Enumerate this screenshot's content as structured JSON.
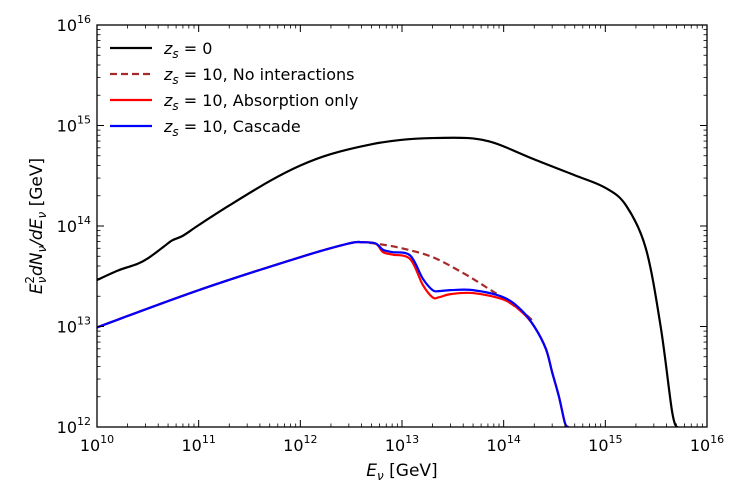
{
  "chart_data": {
    "type": "line",
    "xscale": "log",
    "yscale": "log",
    "xlabel": "E_ν [GeV]",
    "ylabel": "E_ν^2 dN_ν/dE_ν [GeV]",
    "xlabel_parts": {
      "symbol": "E",
      "sub": "ν",
      "unit": " [GeV]"
    },
    "ylabel_parts": {
      "E": "E",
      "sub": "ν",
      "sup": "2",
      "mid": "dN",
      "sub2": "ν",
      "div": "/dE",
      "sub3": "ν",
      "unit": " [GeV]"
    },
    "xlim": [
      10000000000.0,
      1e+16
    ],
    "ylim": [
      1000000000000.0,
      1e+16
    ],
    "x_ticks": [
      {
        "base": "10",
        "exp": "10",
        "value": 10000000000.0
      },
      {
        "base": "10",
        "exp": "11",
        "value": 100000000000.0
      },
      {
        "base": "10",
        "exp": "12",
        "value": 1000000000000.0
      },
      {
        "base": "10",
        "exp": "13",
        "value": 10000000000000.0
      },
      {
        "base": "10",
        "exp": "14",
        "value": 100000000000000.0
      },
      {
        "base": "10",
        "exp": "15",
        "value": 1000000000000000.0
      },
      {
        "base": "10",
        "exp": "16",
        "value": 1e+16
      }
    ],
    "y_ticks": [
      {
        "base": "10",
        "exp": "12",
        "value": 1000000000000.0
      },
      {
        "base": "10",
        "exp": "13",
        "value": 10000000000000.0
      },
      {
        "base": "10",
        "exp": "14",
        "value": 100000000000000.0
      },
      {
        "base": "10",
        "exp": "15",
        "value": 1000000000000000.0
      },
      {
        "base": "10",
        "exp": "16",
        "value": 1e+16
      }
    ],
    "legend_position": "top-left",
    "series": [
      {
        "name": "z_s = 0",
        "legend_main": "z",
        "legend_sub": "s",
        "legend_rest": " = 0",
        "color": "#000000",
        "dash": "solid",
        "x": [
          10000000000.0,
          16000000000.0,
          25000000000.0,
          32000000000.0,
          45000000000.0,
          55000000000.0,
          70000000000.0,
          100000000000.0,
          200000000000.0,
          500000000000.0,
          1000000000000.0,
          2000000000000.0,
          5000000000000.0,
          10000000000000.0,
          20000000000000.0,
          45000000000000.0,
          70000000000000.0,
          100000000000000.0,
          200000000000000.0,
          500000000000000.0,
          1000000000000000.0,
          1600000000000000.0,
          2500000000000000.0,
          3500000000000000.0,
          4500000000000000.0,
          5000000000000000.0,
          5200000000000000.0
        ],
        "y": [
          29000000000000.0,
          36000000000000.0,
          42000000000000.0,
          48000000000000.0,
          62000000000000.0,
          72000000000000.0,
          80000000000000.0,
          102000000000000.0,
          160000000000000.0,
          280000000000000.0,
          400000000000000.0,
          520000000000000.0,
          650000000000000.0,
          720000000000000.0,
          750000000000000.0,
          750000000000000.0,
          700000000000000.0,
          620000000000000.0,
          460000000000000.0,
          320000000000000.0,
          240000000000000.0,
          160000000000000.0,
          60000000000000.0,
          10000000000000.0,
          1500000000000.0,
          1000000000000.0,
          1000000000000.0
        ]
      },
      {
        "name": "z_s = 10, No interactions",
        "legend_main": "z",
        "legend_sub": "s",
        "legend_rest": " = 10, No interactions",
        "color": "#a52a2a",
        "dash": "dashed",
        "x": [
          10000000000.0,
          100000000000.0,
          1000000000000.0,
          3000000000000.0,
          4000000000000.0,
          6000000000000.0,
          10000000000000.0,
          20000000000000.0,
          40000000000000.0,
          70000000000000.0,
          100000000000000.0,
          160000000000000.0,
          200000000000000.0
        ],
        "y": [
          9800000000000.0,
          23000000000000.0,
          49000000000000.0,
          67000000000000.0,
          69000000000000.0,
          66000000000000.0,
          60000000000000.0,
          49000000000000.0,
          34000000000000.0,
          24000000000000.0,
          19000000000000.0,
          13500000000000.0,
          11000000000000.0
        ]
      },
      {
        "name": "z_s = 10, Absorption only",
        "legend_main": "z",
        "legend_sub": "s",
        "legend_rest": " = 10, Absorption only",
        "color": "#ff0000",
        "dash": "solid",
        "x": [
          10000000000.0,
          100000000000.0,
          1000000000000.0,
          3000000000000.0,
          4000000000000.0,
          5500000000000.0,
          6500000000000.0,
          8000000000000.0,
          12000000000000.0,
          16000000000000.0,
          20000000000000.0,
          23000000000000.0,
          30000000000000.0,
          50000000000000.0,
          100000000000000.0,
          150000000000000.0,
          200000000000000.0,
          260000000000000.0,
          300000000000000.0,
          350000000000000.0,
          400000000000000.0,
          430000000000000.0
        ],
        "y": [
          9800000000000.0,
          23000000000000.0,
          49000000000000.0,
          67000000000000.0,
          69000000000000.0,
          67000000000000.0,
          55000000000000.0,
          52000000000000.0,
          47000000000000.0,
          26000000000000.0,
          19500000000000.0,
          19500000000000.0,
          21000000000000.0,
          21500000000000.0,
          18500000000000.0,
          14000000000000.0,
          10000000000000.0,
          6000000000000.0,
          3500000000000.0,
          2000000000000.0,
          1100000000000.0,
          1000000000000.0
        ]
      },
      {
        "name": "z_s = 10, Cascade",
        "legend_main": "z",
        "legend_sub": "s",
        "legend_rest": " = 10, Cascade",
        "color": "#0000ff",
        "dash": "solid",
        "x": [
          10000000000.0,
          100000000000.0,
          1000000000000.0,
          3000000000000.0,
          4000000000000.0,
          5500000000000.0,
          6500000000000.0,
          8000000000000.0,
          12000000000000.0,
          16000000000000.0,
          20000000000000.0,
          23000000000000.0,
          30000000000000.0,
          50000000000000.0,
          100000000000000.0,
          150000000000000.0,
          200000000000000.0,
          260000000000000.0,
          300000000000000.0,
          350000000000000.0,
          400000000000000.0,
          430000000000000.0
        ],
        "y": [
          9800000000000.0,
          23000000000000.0,
          49000000000000.0,
          67000000000000.0,
          69000000000000.0,
          67000000000000.0,
          58000000000000.0,
          55000000000000.0,
          51000000000000.0,
          30000000000000.0,
          23000000000000.0,
          22500000000000.0,
          23000000000000.0,
          23000000000000.0,
          19500000000000.0,
          14500000000000.0,
          10000000000000.0,
          6000000000000.0,
          3500000000000.0,
          2000000000000.0,
          1100000000000.0,
          1000000000000.0
        ]
      }
    ]
  }
}
